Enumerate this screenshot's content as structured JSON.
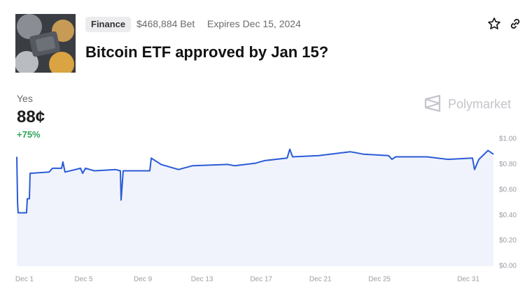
{
  "market": {
    "tag": "Finance",
    "volume": "$468,884 Bet",
    "expires": "Expires Dec 15, 2024",
    "title": "Bitcoin ETF approved by Jan 15?",
    "outcome": "Yes",
    "price": "88¢",
    "change": "+75%",
    "brand": "Polymarket"
  },
  "chart_data": {
    "type": "line",
    "color": "#2a5bd7",
    "grid": false,
    "x": [
      0.48,
      0.53,
      0.57,
      1.14,
      1.19,
      1.33,
      1.38,
      2.66,
      2.89,
      3.51,
      3.6,
      3.74,
      4.79,
      4.93,
      5.12,
      5.73,
      7.15,
      7.48,
      7.53,
      7.67,
      9.47,
      9.57,
      10.23,
      11.41,
      12.36,
      14.72,
      15.2,
      16.62,
      17.23,
      18.75,
      18.93,
      19.12,
      20.88,
      23.01,
      23.95,
      25.61,
      25.84,
      26.08,
      28.21,
      29.63,
      31.28,
      31.42,
      31.71,
      32.33,
      32.7
    ],
    "values": [
      0.86,
      0.5,
      0.42,
      0.42,
      0.53,
      0.53,
      0.73,
      0.74,
      0.77,
      0.77,
      0.82,
      0.74,
      0.77,
      0.73,
      0.77,
      0.75,
      0.76,
      0.75,
      0.52,
      0.75,
      0.75,
      0.85,
      0.8,
      0.76,
      0.79,
      0.8,
      0.79,
      0.81,
      0.83,
      0.85,
      0.92,
      0.86,
      0.87,
      0.9,
      0.88,
      0.87,
      0.84,
      0.86,
      0.86,
      0.84,
      0.85,
      0.76,
      0.84,
      0.91,
      0.88
    ],
    "xlim": [
      0.48,
      32.7
    ],
    "xticks": [
      {
        "value": 1,
        "label": "Dec 1"
      },
      {
        "value": 5,
        "label": "Dec 5"
      },
      {
        "value": 9,
        "label": "Dec 9"
      },
      {
        "value": 13,
        "label": "Dec 13"
      },
      {
        "value": 17,
        "label": "Dec 17"
      },
      {
        "value": 21,
        "label": "Dec 21"
      },
      {
        "value": 25,
        "label": "Dec 25"
      },
      {
        "value": 31,
        "label": "Dec 31"
      }
    ],
    "ylim": [
      0,
      1
    ],
    "yticks": [
      {
        "value": 0,
        "label": "$0.00"
      },
      {
        "value": 0.2,
        "label": "$0.20"
      },
      {
        "value": 0.4,
        "label": "$0.40"
      },
      {
        "value": 0.6,
        "label": "$0.60"
      },
      {
        "value": 0.8,
        "label": "$0.80"
      },
      {
        "value": 1,
        "label": "$1.00"
      }
    ]
  }
}
